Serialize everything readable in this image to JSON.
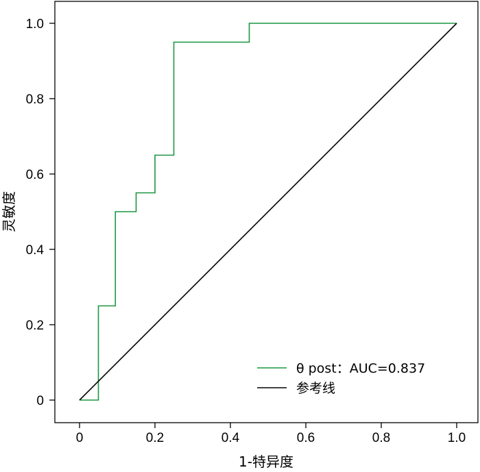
{
  "chart_data": {
    "type": "line",
    "xlabel": "1-特异度",
    "ylabel": "灵敏度",
    "xlim": [
      0,
      1.0
    ],
    "ylim": [
      0,
      1.0
    ],
    "x_ticks": [
      0,
      0.2,
      0.4,
      0.6,
      0.8,
      1.0
    ],
    "x_tick_labels": [
      "0",
      "0.2",
      "0.4",
      "0.6",
      "0.8",
      "1.0"
    ],
    "y_ticks": [
      0,
      0.2,
      0.4,
      0.6,
      0.8,
      1.0
    ],
    "y_tick_labels": [
      "0",
      "0.2",
      "0.4",
      "0.6",
      "0.8",
      "1.0"
    ],
    "grid": false,
    "legend_position": "bottom-right",
    "series": [
      {
        "name": "θ post：AUC=0.837",
        "color": "#1a9641",
        "step": true,
        "x": [
          0,
          0.05,
          0.05,
          0.095,
          0.095,
          0.15,
          0.15,
          0.2,
          0.2,
          0.25,
          0.25,
          0.45,
          0.45,
          1.0
        ],
        "y": [
          0,
          0,
          0.25,
          0.25,
          0.5,
          0.5,
          0.55,
          0.55,
          0.65,
          0.65,
          0.95,
          0.95,
          1.0,
          1.0
        ]
      },
      {
        "name": "参考线",
        "color": "#000000",
        "x": [
          0,
          1.0
        ],
        "y": [
          0,
          1.0
        ]
      }
    ]
  }
}
